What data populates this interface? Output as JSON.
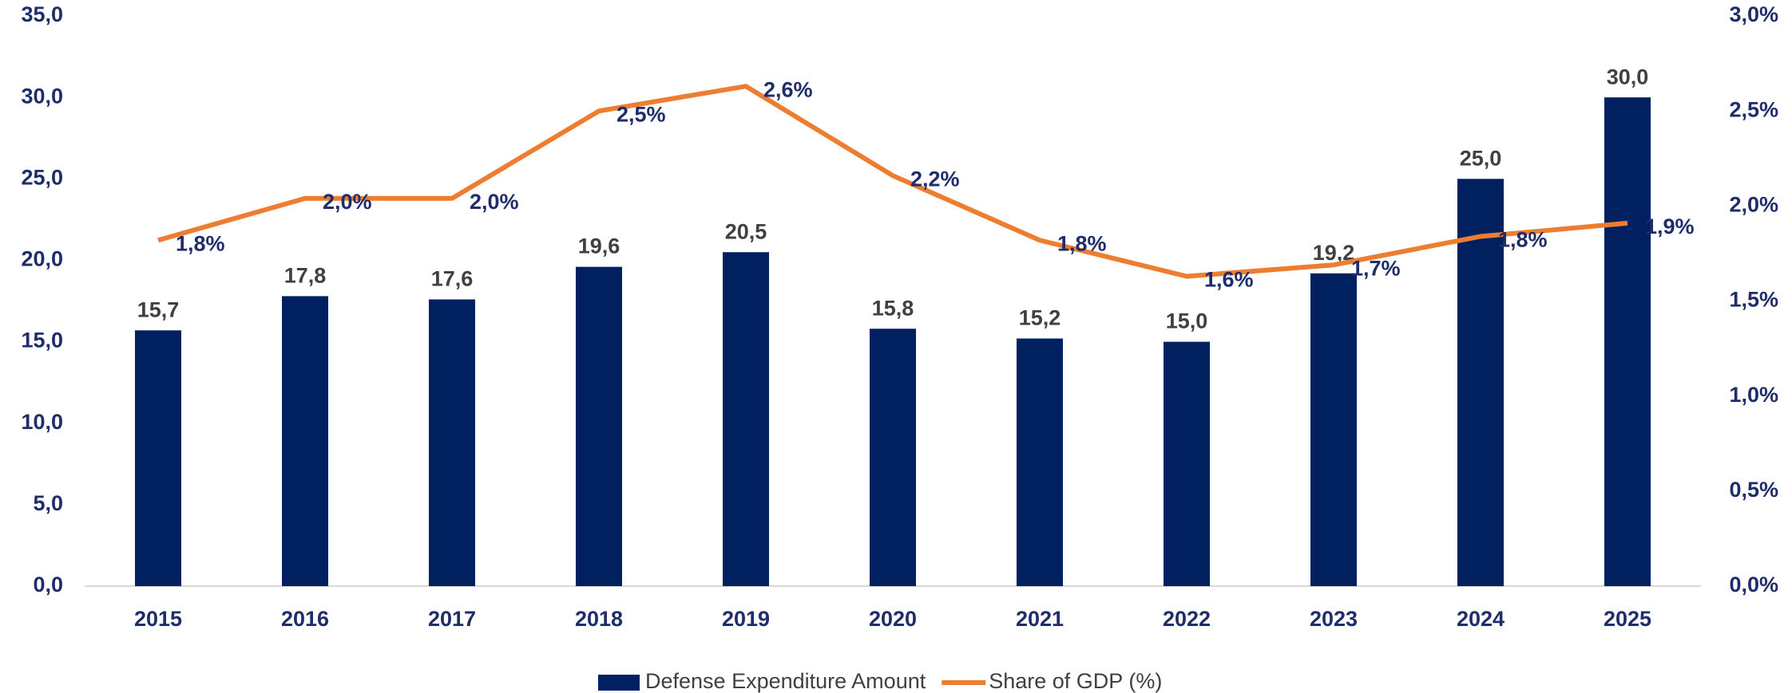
{
  "chart_data": {
    "type": "bar",
    "categories": [
      "2015",
      "2016",
      "2017",
      "2018",
      "2019",
      "2020",
      "2021",
      "2022",
      "2023",
      "2024",
      "2025"
    ],
    "series": [
      {
        "name": "Defense Expenditure Amount",
        "color": "#002060",
        "type": "bar",
        "values": [
          15.7,
          17.8,
          17.6,
          19.6,
          20.5,
          15.8,
          15.2,
          15.0,
          19.2,
          25.0,
          30.0
        ],
        "value_labels": [
          "15,7",
          "17,8",
          "17,6",
          "19,6",
          "20,5",
          "15,8",
          "15,2",
          "15,0",
          "19,2",
          "25,0",
          "30,0"
        ]
      },
      {
        "name": "Share of GDP (%)",
        "color": "#ED7D31",
        "type": "line",
        "axis": "y2",
        "values": [
          1.82,
          2.04,
          2.04,
          2.5,
          2.63,
          2.16,
          1.82,
          1.63,
          1.69,
          1.84,
          1.91
        ],
        "value_labels": [
          "1,8%",
          "2,0%",
          "2,0%",
          "2,5%",
          "2,6%",
          "2,2%",
          "1,8%",
          "1,6%",
          "1,7%",
          "1,8%",
          "1,9%"
        ]
      }
    ],
    "ylim": [
      0,
      35
    ],
    "yticks": [
      {
        "value": 0,
        "label": "0,0"
      },
      {
        "value": 5,
        "label": "5,0"
      },
      {
        "value": 10,
        "label": "10,0"
      },
      {
        "value": 15,
        "label": "15,0"
      },
      {
        "value": 20,
        "label": "20,0"
      },
      {
        "value": 25,
        "label": "25,0"
      },
      {
        "value": 30,
        "label": "30,0"
      },
      {
        "value": 35,
        "label": "35,0"
      }
    ],
    "y2lim": [
      0,
      3
    ],
    "y2ticks": [
      {
        "value": 0,
        "label": "0,0%"
      },
      {
        "value": 0.5,
        "label": "0,5%"
      },
      {
        "value": 1,
        "label": "1,0%"
      },
      {
        "value": 1.5,
        "label": "1,5%"
      },
      {
        "value": 2,
        "label": "2,0%"
      },
      {
        "value": 2.5,
        "label": "2,5%"
      },
      {
        "value": 3,
        "label": "3,0%"
      }
    ],
    "grid": false,
    "legend": "bottom"
  }
}
